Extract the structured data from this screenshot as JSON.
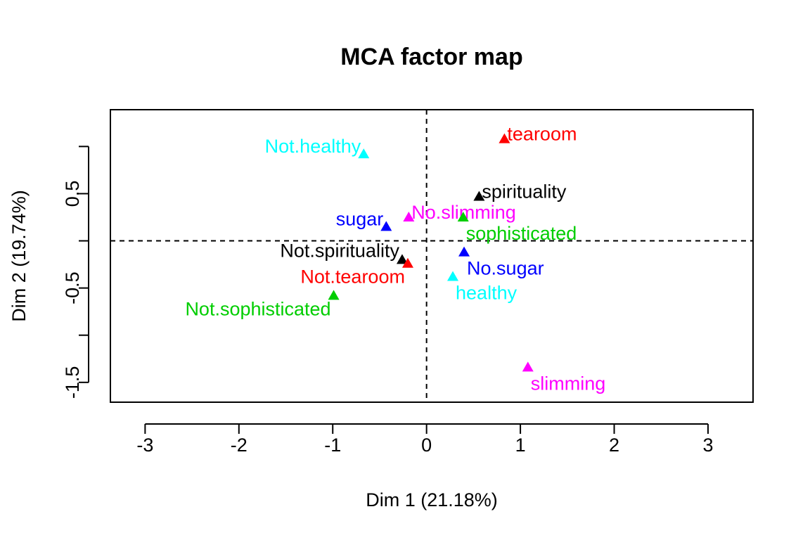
{
  "chart_data": {
    "type": "scatter",
    "title": "MCA factor map",
    "xlabel": "Dim 1 (21.18%)",
    "ylabel": "Dim 2 (19.74%)",
    "xlim": [
      -3.37,
      3.48
    ],
    "ylim": [
      -1.71,
      1.39
    ],
    "xticks": [
      -3,
      -2,
      -1,
      0,
      1,
      2,
      3
    ],
    "yticks": [
      -1.5,
      -0.5,
      0.5
    ],
    "ytick_labels": [
      "-1.5",
      "-0.5",
      "0.5"
    ],
    "reference_lines": {
      "x": 0,
      "y": 0,
      "style": "dashed"
    },
    "grid": false,
    "legend": false,
    "marker": "triangle",
    "points": [
      {
        "label": "tearoom",
        "x": 0.83,
        "y": 1.08,
        "color": "#FF0000",
        "anchor": "right"
      },
      {
        "label": "Not.healthy",
        "x": -0.67,
        "y": 0.92,
        "color": "#00FFFF",
        "anchor": "left"
      },
      {
        "label": "spirituality",
        "x": 0.56,
        "y": 0.47,
        "color": "#000000",
        "anchor": "right"
      },
      {
        "label": "No.slimming",
        "x": -0.19,
        "y": 0.25,
        "color": "#FF00FF",
        "anchor": "right"
      },
      {
        "label": "sophisticated",
        "x": 0.39,
        "y": 0.25,
        "color": "#00CD00",
        "anchor": "below-right"
      },
      {
        "label": "sugar",
        "x": -0.43,
        "y": 0.15,
        "color": "#0000FF",
        "anchor": "left"
      },
      {
        "label": "No.sugar",
        "x": 0.4,
        "y": -0.12,
        "color": "#0000FF",
        "anchor": "below-right"
      },
      {
        "label": "Not.spirituality",
        "x": -0.26,
        "y": -0.2,
        "color": "#000000",
        "anchor": "above-left"
      },
      {
        "label": "Not.tearoom",
        "x": -0.2,
        "y": -0.24,
        "color": "#FF0000",
        "anchor": "below-left"
      },
      {
        "label": "healthy",
        "x": 0.28,
        "y": -0.38,
        "color": "#00FFFF",
        "anchor": "below-right"
      },
      {
        "label": "Not.sophisticated",
        "x": -0.99,
        "y": -0.58,
        "color": "#00CD00",
        "anchor": "below-left"
      },
      {
        "label": "slimming",
        "x": 1.08,
        "y": -1.34,
        "color": "#FF00FF",
        "anchor": "below-right"
      }
    ]
  }
}
